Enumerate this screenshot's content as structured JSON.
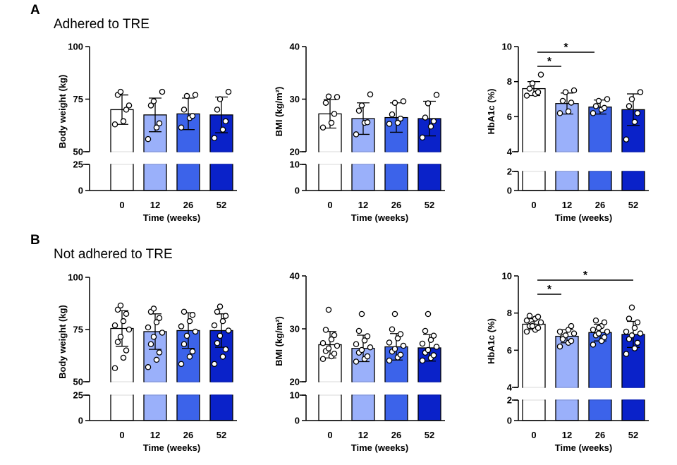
{
  "panels": [
    {
      "letter": "A",
      "title": "Adhered to TRE"
    },
    {
      "letter": "B",
      "title": "Not adhered to TRE"
    }
  ],
  "colors": {
    "week0": "#ffffff",
    "week12": "#9ab0fa",
    "week26": "#3c63ea",
    "week52": "#0a22c9",
    "stroke": "#000000"
  },
  "chart_data": [
    {
      "type": "bar",
      "panel": "A",
      "categories": [
        "0",
        "12",
        "26",
        "52"
      ],
      "xlabel": "Time (weeks)",
      "ylabel": "Body weight (kg)",
      "y_lower_ticks": [
        0,
        25
      ],
      "y_upper_ticks": [
        50,
        75,
        100
      ],
      "ylim_lower": [
        0,
        25
      ],
      "ylim_upper": [
        50,
        100
      ],
      "means": [
        70,
        67.5,
        68,
        67.5
      ],
      "sd": [
        7,
        8,
        7.5,
        8.5
      ],
      "points": [
        [
          63,
          64.5,
          70,
          77,
          78.5,
          72
        ],
        [
          56,
          61.5,
          63.5,
          72,
          74,
          78.5
        ],
        [
          61.5,
          66,
          67,
          70,
          76.5,
          77
        ],
        [
          56.5,
          60.5,
          64.5,
          70,
          75,
          78.5
        ]
      ],
      "significance": []
    },
    {
      "type": "bar",
      "panel": "A",
      "categories": [
        "0",
        "12",
        "26",
        "52"
      ],
      "xlabel": "Time (weeks)",
      "ylabel": "BMI (kg/m²)",
      "y_lower_ticks": [
        0,
        10
      ],
      "y_upper_ticks": [
        20,
        30,
        40
      ],
      "ylim_lower": [
        0,
        10
      ],
      "ylim_upper": [
        20,
        40
      ],
      "means": [
        27.2,
        26.3,
        26.5,
        26.3
      ],
      "sd": [
        2.7,
        3.0,
        2.8,
        3.3
      ],
      "points": [
        [
          24.6,
          25.5,
          27.2,
          29.3,
          30.5,
          30.4
        ],
        [
          23.3,
          25.5,
          25.6,
          27.8,
          28.8,
          30.9
        ],
        [
          25.3,
          25.5,
          26.3,
          27.1,
          29.3,
          29.6
        ],
        [
          22.7,
          24.8,
          25.8,
          26.5,
          29.2,
          30.8
        ]
      ],
      "significance": []
    },
    {
      "type": "bar",
      "panel": "A",
      "categories": [
        "0",
        "12",
        "26",
        "52"
      ],
      "xlabel": "Time (weeks)",
      "ylabel": "HbA1c (%)",
      "y_lower_ticks": [
        0,
        2
      ],
      "y_upper_ticks": [
        4,
        6,
        8,
        10
      ],
      "ylim_lower": [
        0,
        2
      ],
      "ylim_upper": [
        4,
        10
      ],
      "means": [
        7.6,
        6.75,
        6.55,
        6.4
      ],
      "sd": [
        0.4,
        0.6,
        0.4,
        0.9
      ],
      "points": [
        [
          7.2,
          7.3,
          7.4,
          7.6,
          7.9,
          8.4
        ],
        [
          6.2,
          6.3,
          6.8,
          6.9,
          7.4,
          7.5
        ],
        [
          6.2,
          6.4,
          6.5,
          6.6,
          6.9,
          7.0
        ],
        [
          4.7,
          5.7,
          6.2,
          6.6,
          7.0,
          7.4
        ]
      ],
      "significance": [
        {
          "from": "0",
          "to": "12",
          "label": "*"
        },
        {
          "from": "0",
          "to": "26",
          "label": "*"
        }
      ]
    },
    {
      "type": "bar",
      "panel": "B",
      "categories": [
        "0",
        "12",
        "26",
        "52"
      ],
      "xlabel": "Time (weeks)",
      "ylabel": "Body weight (kg)",
      "y_lower_ticks": [
        0,
        25
      ],
      "y_upper_ticks": [
        50,
        75,
        100
      ],
      "ylim_lower": [
        0,
        25
      ],
      "ylim_upper": [
        50,
        100
      ],
      "means": [
        75.5,
        74,
        74.5,
        74.5
      ],
      "sd": [
        8.5,
        8.5,
        8.5,
        8
      ],
      "points": [
        [
          56.5,
          61.5,
          65,
          69,
          71.5,
          75,
          77,
          79,
          82.5,
          84.5,
          86.5
        ],
        [
          57,
          60.5,
          64,
          68,
          71.5,
          73.5,
          76,
          78.5,
          80.5,
          83.5,
          85
        ],
        [
          58.5,
          62,
          64.5,
          68,
          72,
          74,
          76.5,
          79,
          82,
          83.5
        ],
        [
          58.5,
          62,
          65.5,
          68.5,
          72,
          74.5,
          77,
          79,
          81.5,
          83.5,
          86
        ]
      ],
      "significance": []
    },
    {
      "type": "bar",
      "panel": "B",
      "categories": [
        "0",
        "12",
        "26",
        "52"
      ],
      "xlabel": "Time (weeks)",
      "ylabel": "BMI (kg/m²)",
      "y_lower_ticks": [
        0,
        10
      ],
      "y_upper_ticks": [
        20,
        30,
        40
      ],
      "ylim_lower": [
        0,
        10
      ],
      "ylim_upper": [
        20,
        40
      ],
      "means": [
        27.0,
        26.3,
        26.6,
        26.4
      ],
      "sd": [
        2.5,
        2.5,
        2.5,
        2.5
      ],
      "points": [
        [
          24.3,
          24.8,
          25.3,
          25.8,
          26.3,
          26.8,
          27.3,
          28.0,
          28.8,
          29.8,
          33.6
        ],
        [
          23.8,
          24.3,
          24.8,
          25.5,
          26.0,
          26.5,
          27.1,
          27.8,
          28.6,
          29.6,
          32.8
        ],
        [
          24.0,
          24.6,
          25.1,
          25.7,
          26.2,
          26.8,
          27.4,
          28.2,
          29.0,
          29.9,
          32.8
        ],
        [
          24.0,
          24.5,
          25.0,
          25.5,
          26.0,
          26.6,
          27.2,
          27.9,
          28.7,
          29.6,
          32.8
        ]
      ],
      "significance": []
    },
    {
      "type": "bar",
      "panel": "B",
      "categories": [
        "0",
        "12",
        "26",
        "52"
      ],
      "xlabel": "Time (weeks)",
      "ylabel": "HbA1c (%)",
      "y_lower_ticks": [
        0,
        2
      ],
      "y_upper_ticks": [
        4,
        6,
        8,
        10
      ],
      "ylim_lower": [
        0,
        2
      ],
      "ylim_upper": [
        4,
        10
      ],
      "means": [
        7.4,
        6.75,
        6.95,
        6.85
      ],
      "sd": [
        0.3,
        0.35,
        0.45,
        0.7
      ],
      "points": [
        [
          7.0,
          7.1,
          7.2,
          7.3,
          7.4,
          7.5,
          7.6,
          7.7,
          7.8,
          7.85,
          7.3
        ],
        [
          6.2,
          6.4,
          6.5,
          6.7,
          6.8,
          6.9,
          7.0,
          7.1,
          7.3,
          6.6
        ],
        [
          6.3,
          6.5,
          6.7,
          6.8,
          6.9,
          7.0,
          7.1,
          7.3,
          7.5,
          7.6,
          7.2
        ],
        [
          5.8,
          6.1,
          6.4,
          6.6,
          6.8,
          6.9,
          7.0,
          7.2,
          7.5,
          7.7,
          8.3
        ]
      ],
      "significance": [
        {
          "from": "0",
          "to": "12",
          "label": "*"
        },
        {
          "from": "0",
          "to": "52",
          "label": "*"
        }
      ]
    }
  ]
}
